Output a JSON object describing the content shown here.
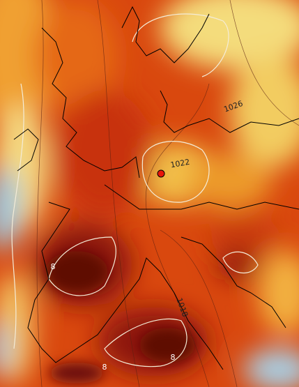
{
  "contour_labels": [
    "1026",
    "1022",
    "1018",
    "8",
    "8",
    "8"
  ]
}
